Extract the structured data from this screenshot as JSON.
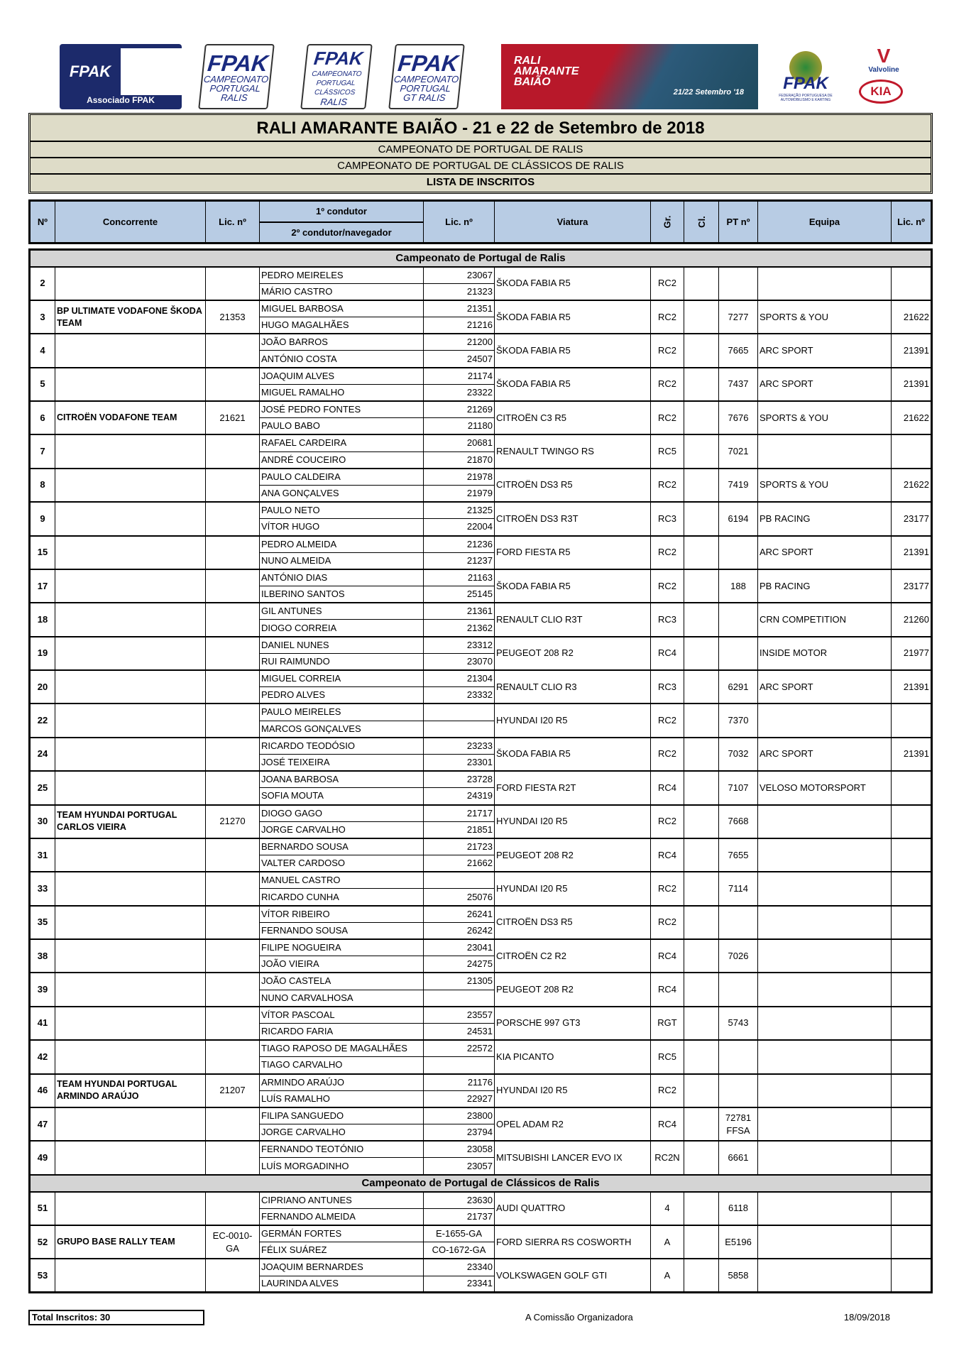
{
  "logos": {
    "associado": "Associado FPAK",
    "ralis": [
      "FPAK",
      "CAMPEONATO",
      "PORTUGAL",
      "RALIS"
    ],
    "classicos": [
      "FPAK",
      "CAMPEONATO",
      "PORTUGAL",
      "CLÁSSICOS",
      "RALIS"
    ],
    "gt": [
      "FPAK",
      "CAMPEONATO",
      "PORTUGAL",
      "GT RALIS"
    ],
    "banner": [
      "RALI",
      "AMARANTE",
      "BAIÃO",
      "21/22 Setembro '18"
    ],
    "fpak": [
      "FPAK",
      "FEDERAÇÃO PORTUGUESA DE AUTOMOBILISMO E KARTING"
    ],
    "valvoline": "Valvoline",
    "kia": "KIA"
  },
  "header": {
    "title": "RALI AMARANTE BAIÃO - 21 e 22 de Setembro de 2018",
    "sub1": "CAMPEONATO DE PORTUGAL DE RALIS",
    "sub2": "CAMPEONATO DE PORTUGAL DE CLÁSSICOS DE RALIS",
    "lista": "LISTA DE INSCRITOS"
  },
  "columns": {
    "n": "Nº",
    "concorrente": "Concorrente",
    "lic": "Lic.  nº",
    "d1": "1º condutor",
    "d2": "2º condutor/navegador",
    "dlic": "Lic. nº",
    "viatura": "Viatura",
    "gr": "Gr.",
    "cl": "Cl.",
    "pt": "PT nº",
    "equipa": "Equipa",
    "elic": "Lic. nº"
  },
  "sections": [
    {
      "title": "Campeonato de Portugal de Ralis",
      "rows": [
        {
          "n": "2",
          "c": "",
          "lic": "",
          "d1": "PEDRO MEIRELES",
          "l1": "23067",
          "d2": "MÁRIO CASTRO",
          "l2": "21323",
          "v": "ŠKODA FABIA R5",
          "gr": "RC2",
          "cl": "",
          "pt": "",
          "eq": "",
          "el": ""
        },
        {
          "n": "3",
          "c": "BP ULTIMATE VODAFONE ŠKODA TEAM",
          "lic": "21353",
          "d1": "MIGUEL BARBOSA",
          "l1": "21351",
          "d2": "HUGO MAGALHÃES",
          "l2": "21216",
          "v": "ŠKODA FABIA R5",
          "gr": "RC2",
          "cl": "",
          "pt": "7277",
          "eq": "SPORTS & YOU",
          "el": "21622"
        },
        {
          "n": "4",
          "c": "",
          "lic": "",
          "d1": "JOÃO BARROS",
          "l1": "21200",
          "d2": "ANTÓNIO COSTA",
          "l2": "24507",
          "v": "ŠKODA FABIA R5",
          "gr": "RC2",
          "cl": "",
          "pt": "7665",
          "eq": "ARC SPORT",
          "el": "21391"
        },
        {
          "n": "5",
          "c": "",
          "lic": "",
          "d1": "JOAQUIM ALVES",
          "l1": "21174",
          "d2": "MIGUEL RAMALHO",
          "l2": "23322",
          "v": "ŠKODA FABIA R5",
          "gr": "RC2",
          "cl": "",
          "pt": "7437",
          "eq": "ARC SPORT",
          "el": "21391"
        },
        {
          "n": "6",
          "c": "CITROËN VODAFONE TEAM",
          "lic": "21621",
          "d1": "JOSÉ PEDRO FONTES",
          "l1": "21269",
          "d2": "PAULO BABO",
          "l2": "21180",
          "v": "CITROËN C3 R5",
          "gr": "RC2",
          "cl": "",
          "pt": "7676",
          "eq": "SPORTS & YOU",
          "el": "21622"
        },
        {
          "n": "7",
          "c": "",
          "lic": "",
          "d1": "RAFAEL CARDEIRA",
          "l1": "20681",
          "d2": "ANDRÉ COUCEIRO",
          "l2": "21870",
          "v": "RENAULT TWINGO RS",
          "gr": "RC5",
          "cl": "",
          "pt": "7021",
          "eq": "",
          "el": ""
        },
        {
          "n": "8",
          "c": "",
          "lic": "",
          "d1": "PAULO CALDEIRA",
          "l1": "21978",
          "d2": "ANA GONÇALVES",
          "l2": "21979",
          "v": "CITROËN DS3 R5",
          "gr": "RC2",
          "cl": "",
          "pt": "7419",
          "eq": "SPORTS & YOU",
          "el": "21622"
        },
        {
          "n": "9",
          "c": "",
          "lic": "",
          "d1": "PAULO NETO",
          "l1": "21325",
          "d2": "VÍTOR HUGO",
          "l2": "22004",
          "v": "CITROËN DS3 R3T",
          "gr": "RC3",
          "cl": "",
          "pt": "6194",
          "eq": "PB RACING",
          "el": "23177"
        },
        {
          "n": "15",
          "c": "",
          "lic": "",
          "d1": "PEDRO ALMEIDA",
          "l1": "21236",
          "d2": "NUNO ALMEIDA",
          "l2": "21237",
          "v": "FORD FIESTA R5",
          "gr": "RC2",
          "cl": "",
          "pt": "",
          "eq": "ARC SPORT",
          "el": "21391"
        },
        {
          "n": "17",
          "c": "",
          "lic": "",
          "d1": "ANTÓNIO DIAS",
          "l1": "21163",
          "d2": "ILBERINO SANTOS",
          "l2": "25145",
          "v": "ŠKODA FABIA R5",
          "gr": "RC2",
          "cl": "",
          "pt": "188",
          "eq": "PB RACING",
          "el": "23177"
        },
        {
          "n": "18",
          "c": "",
          "lic": "",
          "d1": "GIL ANTUNES",
          "l1": "21361",
          "d2": "DIOGO CORREIA",
          "l2": "21362",
          "v": "RENAULT CLIO R3T",
          "gr": "RC3",
          "cl": "",
          "pt": "",
          "eq": "CRN COMPETITION",
          "el": "21260"
        },
        {
          "n": "19",
          "c": "",
          "lic": "",
          "d1": "DANIEL NUNES",
          "l1": "23312",
          "d2": "RUI RAIMUNDO",
          "l2": "23070",
          "v": "PEUGEOT 208 R2",
          "gr": "RC4",
          "cl": "",
          "pt": "",
          "eq": "INSIDE MOTOR",
          "el": "21977"
        },
        {
          "n": "20",
          "c": "",
          "lic": "",
          "d1": "MIGUEL CORREIA",
          "l1": "21304",
          "d2": "PEDRO ALVES",
          "l2": "23332",
          "v": "RENAULT CLIO R3",
          "gr": "RC3",
          "cl": "",
          "pt": "6291",
          "eq": "ARC SPORT",
          "el": "21391"
        },
        {
          "n": "22",
          "c": "",
          "lic": "",
          "d1": "PAULO MEIRELES",
          "l1": "",
          "d2": "MARCOS GONÇALVES",
          "l2": "",
          "v": "HYUNDAI I20 R5",
          "gr": "RC2",
          "cl": "",
          "pt": "7370",
          "eq": "",
          "el": ""
        },
        {
          "n": "24",
          "c": "",
          "lic": "",
          "d1": "RICARDO TEODÓSIO",
          "l1": "23233",
          "d2": "JOSÉ TEIXEIRA",
          "l2": "23301",
          "v": "ŠKODA FABIA R5",
          "gr": "RC2",
          "cl": "",
          "pt": "7032",
          "eq": "ARC SPORT",
          "el": "21391"
        },
        {
          "n": "25",
          "c": "",
          "lic": "",
          "d1": "JOANA BARBOSA",
          "l1": "23728",
          "d2": "SOFIA MOUTA",
          "l2": "24319",
          "v": "FORD FIESTA R2T",
          "gr": "RC4",
          "cl": "",
          "pt": "7107",
          "eq": "VELOSO MOTORSPORT",
          "el": ""
        },
        {
          "n": "30",
          "c": "TEAM HYUNDAI PORTUGAL CARLOS VIEIRA",
          "lic": "21270",
          "d1": "DIOGO GAGO",
          "l1": "21717",
          "d2": "JORGE CARVALHO",
          "l2": "21851",
          "v": "HYUNDAI I20 R5",
          "gr": "RC2",
          "cl": "",
          "pt": "7668",
          "eq": "",
          "el": ""
        },
        {
          "n": "31",
          "c": "",
          "lic": "",
          "d1": "BERNARDO SOUSA",
          "l1": "21723",
          "d2": "VALTER CARDOSO",
          "l2": "21662",
          "v": "PEUGEOT 208 R2",
          "gr": "RC4",
          "cl": "",
          "pt": "7655",
          "eq": "",
          "el": ""
        },
        {
          "n": "33",
          "c": "",
          "lic": "",
          "d1": "MANUEL CASTRO",
          "l1": "",
          "d2": "RICARDO CUNHA",
          "l2": "25076",
          "v": "HYUNDAI I20 R5",
          "gr": "RC2",
          "cl": "",
          "pt": "7114",
          "eq": "",
          "el": ""
        },
        {
          "n": "35",
          "c": "",
          "lic": "",
          "d1": "VÍTOR RIBEIRO",
          "l1": "26241",
          "d2": "FERNANDO SOUSA",
          "l2": "26242",
          "v": "CITROËN DS3 R5",
          "gr": "RC2",
          "cl": "",
          "pt": "",
          "eq": "",
          "el": ""
        },
        {
          "n": "38",
          "c": "",
          "lic": "",
          "d1": "FILIPE NOGUEIRA",
          "l1": "23041",
          "d2": "JOÃO VIEIRA",
          "l2": "24275",
          "v": "CITROËN C2 R2",
          "gr": "RC4",
          "cl": "",
          "pt": "7026",
          "eq": "",
          "el": ""
        },
        {
          "n": "39",
          "c": "",
          "lic": "",
          "d1": "JOÃO CASTELA",
          "l1": "21305",
          "d2": "NUNO CARVALHOSA",
          "l2": "",
          "v": "PEUGEOT 208 R2",
          "gr": "RC4",
          "cl": "",
          "pt": "",
          "eq": "",
          "el": ""
        },
        {
          "n": "41",
          "c": "",
          "lic": "",
          "d1": "VÍTOR PASCOAL",
          "l1": "23557",
          "d2": "RICARDO FARIA",
          "l2": "24531",
          "v": "PORSCHE 997 GT3",
          "gr": "RGT",
          "cl": "",
          "pt": "5743",
          "eq": "",
          "el": ""
        },
        {
          "n": "42",
          "c": "",
          "lic": "",
          "d1": "TIAGO RAPOSO DE MAGALHÃES",
          "l1": "22572",
          "d2": "TIAGO CARVALHO",
          "l2": "",
          "v": "KIA PICANTO",
          "gr": "RC5",
          "cl": "",
          "pt": "",
          "eq": "",
          "el": ""
        },
        {
          "n": "46",
          "c": "TEAM HYUNDAI PORTUGAL ARMINDO ARAÚJO",
          "lic": "21207",
          "d1": "ARMINDO ARAÚJO",
          "l1": "21176",
          "d2": "LUÍS RAMALHO",
          "l2": "22927",
          "v": "HYUNDAI I20 R5",
          "gr": "RC2",
          "cl": "",
          "pt": "",
          "eq": "",
          "el": ""
        },
        {
          "n": "47",
          "c": "",
          "lic": "",
          "d1": "FILIPA SANGUEDO",
          "l1": "23800",
          "d2": "JORGE CARVALHO",
          "l2": "23794",
          "v": "OPEL ADAM R2",
          "gr": "RC4",
          "cl": "",
          "pt": "72781 FFSA",
          "eq": "",
          "el": ""
        },
        {
          "n": "49",
          "c": "",
          "lic": "",
          "d1": "FERNANDO TEOTÓNIO",
          "l1": "23058",
          "d2": "LUÍS MORGADINHO",
          "l2": "23057",
          "v": "MITSUBISHI LANCER EVO IX",
          "gr": "RC2N",
          "cl": "",
          "pt": "6661",
          "eq": "",
          "el": ""
        }
      ]
    },
    {
      "title": "Campeonato de Portugal de Clássicos de Ralis",
      "rows": [
        {
          "n": "51",
          "c": "",
          "lic": "",
          "d1": "CIPRIANO ANTUNES",
          "l1": "23630",
          "d2": "FERNANDO ALMEIDA",
          "l2": "21737",
          "v": "AUDI QUATTRO",
          "gr": "4",
          "cl": "",
          "pt": "6118",
          "eq": "",
          "el": ""
        },
        {
          "n": "52",
          "c": "GRUPO BASE RALLY TEAM",
          "lic": "EC-0010-GA",
          "d1": "GERMÁN FORTES",
          "l1": "E-1655-GA",
          "d2": "FÉLIX SUÁREZ",
          "l2": "CO-1672-GA",
          "v": "FORD SIERRA RS COSWORTH",
          "gr": "A",
          "cl": "",
          "pt": "E5196",
          "eq": "",
          "el": ""
        },
        {
          "n": "53",
          "c": "",
          "lic": "",
          "d1": "JOAQUIM BERNARDES",
          "l1": "23340",
          "d2": "LAURINDA ALVES",
          "l2": "23341",
          "v": "VOLKSWAGEN GOLF GTI",
          "gr": "A",
          "cl": "",
          "pt": "5858",
          "eq": "",
          "el": ""
        }
      ]
    }
  ],
  "footer": {
    "total": "Total Inscritos: 30",
    "comissao": "A Comissão Organizadora",
    "date": "18/09/2018"
  },
  "colors": {
    "title_bg": "#dedcc8",
    "header_bg": "#b8cce4",
    "section_bg": "#d4d4d4",
    "fpak_blue": "#1a2a80"
  }
}
